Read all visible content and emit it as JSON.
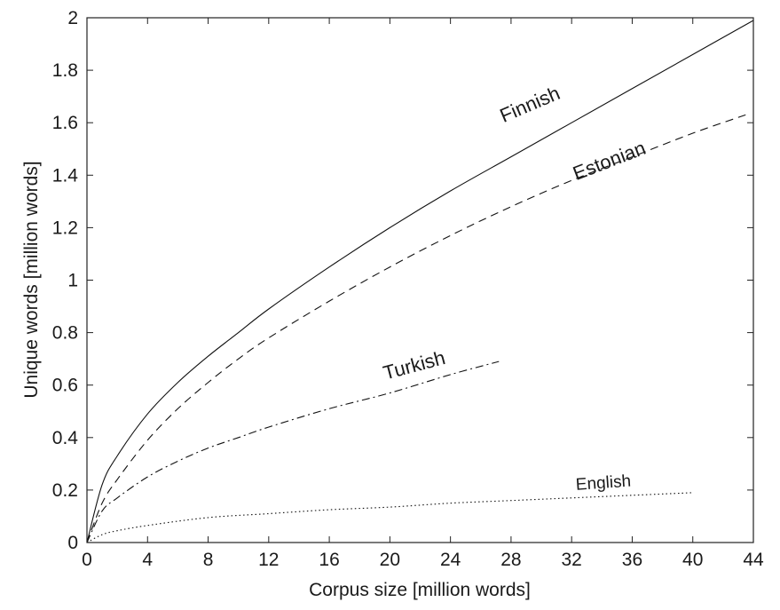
{
  "chart_data": {
    "type": "line",
    "title": "",
    "xlabel": "Corpus size [million words]",
    "ylabel": "Unique words [million words]",
    "xlim": [
      0,
      44
    ],
    "ylim": [
      0,
      2
    ],
    "xticks": [
      0,
      4,
      8,
      12,
      16,
      20,
      24,
      28,
      32,
      36,
      40,
      44
    ],
    "yticks": [
      0,
      0.2,
      0.4,
      0.6,
      0.8,
      1,
      1.2,
      1.4,
      1.6,
      1.8,
      2
    ],
    "xtick_labels": [
      "0",
      "4",
      "8",
      "12",
      "16",
      "20",
      "24",
      "28",
      "32",
      "36",
      "40",
      "44"
    ],
    "ytick_labels": [
      "0",
      "0.2",
      "0.4",
      "0.6",
      "0.8",
      "1",
      "1.2",
      "1.4",
      "1.6",
      "1.8",
      "2"
    ],
    "grid": false,
    "legend": "inline labels",
    "series": [
      {
        "name": "Finnish",
        "style": "solid",
        "x": [
          0,
          1,
          2,
          4,
          6,
          8,
          10,
          12,
          16,
          20,
          24,
          28,
          32,
          36,
          40,
          44
        ],
        "y": [
          0,
          0.22,
          0.33,
          0.49,
          0.61,
          0.71,
          0.8,
          0.89,
          1.05,
          1.2,
          1.34,
          1.47,
          1.6,
          1.73,
          1.86,
          1.99
        ]
      },
      {
        "name": "Estonian",
        "style": "dashed",
        "x": [
          0,
          1,
          2,
          4,
          6,
          8,
          10,
          12,
          16,
          20,
          24,
          28,
          32,
          36,
          40,
          43.5
        ],
        "y": [
          0,
          0.15,
          0.24,
          0.39,
          0.51,
          0.61,
          0.7,
          0.78,
          0.92,
          1.05,
          1.17,
          1.28,
          1.38,
          1.47,
          1.56,
          1.63
        ]
      },
      {
        "name": "Turkish",
        "style": "dashdot",
        "x": [
          0,
          1,
          2,
          4,
          6,
          8,
          10,
          12,
          16,
          20,
          24,
          27.2
        ],
        "y": [
          0,
          0.12,
          0.17,
          0.25,
          0.31,
          0.36,
          0.4,
          0.44,
          0.51,
          0.57,
          0.64,
          0.69
        ]
      },
      {
        "name": "English",
        "style": "dotted",
        "x": [
          0,
          1,
          2,
          4,
          8,
          12,
          16,
          20,
          24,
          28,
          32,
          36,
          40
        ],
        "y": [
          0,
          0.03,
          0.045,
          0.065,
          0.095,
          0.11,
          0.125,
          0.135,
          0.15,
          0.16,
          0.17,
          0.18,
          0.19
        ]
      }
    ],
    "annotations": [
      {
        "text": "Finnish",
        "x": 27.5,
        "y": 1.6,
        "rotate": -23,
        "size": "large"
      },
      {
        "text": "Estonian",
        "x": 32.3,
        "y": 1.38,
        "rotate": -21,
        "size": "large"
      },
      {
        "text": "Turkish",
        "x": 19.7,
        "y": 0.62,
        "rotate": -15,
        "size": "large"
      },
      {
        "text": "English",
        "x": 32.3,
        "y": 0.2,
        "rotate": -4,
        "size": "small"
      }
    ]
  }
}
